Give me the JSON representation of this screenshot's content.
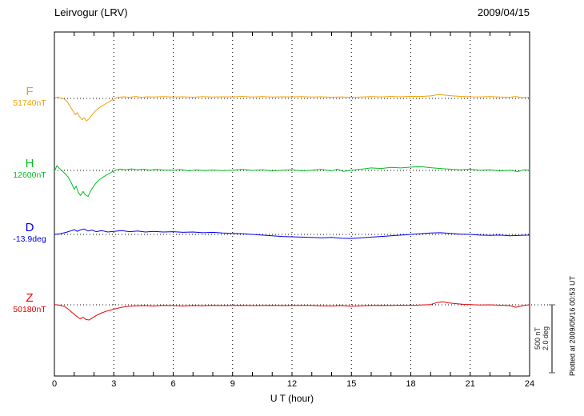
{
  "header": {
    "title": "Leirvogur (LRV)",
    "date": "2009/04/15"
  },
  "x_axis": {
    "label": "U T (hour)"
  },
  "scale_bar": {
    "nt_label": "500 nT",
    "deg_label": "2.0 deg"
  },
  "plotted_at": "Plotted at 2009/05/16 00:53 UT",
  "chart_data": {
    "type": "line",
    "title": "Leirvogur (LRV) magnetogram 2009/04/15",
    "xlabel": "U T (hour)",
    "x_range": [
      0,
      24
    ],
    "x_ticks": [
      0,
      3,
      6,
      9,
      12,
      15,
      18,
      21,
      24
    ],
    "grid": "dotted vertical at 3h intervals, dotted horizontal baseline per trace",
    "scale_bar": {
      "nT": 500,
      "deg": 2.0
    },
    "series": [
      {
        "name": "F",
        "unit": "nT",
        "baseline": 51740,
        "baseline_label": "51740nT",
        "color": "#f2a200",
        "points": [
          [
            0,
            6
          ],
          [
            0.2,
            10
          ],
          [
            0.35,
            2
          ],
          [
            0.5,
            -5
          ],
          [
            0.65,
            -25
          ],
          [
            0.8,
            -60
          ],
          [
            0.95,
            -95
          ],
          [
            1.05,
            -120
          ],
          [
            1.15,
            -105
          ],
          [
            1.25,
            -130
          ],
          [
            1.4,
            -158
          ],
          [
            1.5,
            -142
          ],
          [
            1.62,
            -165
          ],
          [
            1.75,
            -150
          ],
          [
            1.9,
            -122
          ],
          [
            2.05,
            -95
          ],
          [
            2.2,
            -75
          ],
          [
            2.4,
            -55
          ],
          [
            2.6,
            -38
          ],
          [
            2.8,
            -20
          ],
          [
            3.0,
            -5
          ],
          [
            3.2,
            8
          ],
          [
            3.5,
            12
          ],
          [
            3.8,
            8
          ],
          [
            4.1,
            14
          ],
          [
            4.4,
            8
          ],
          [
            4.7,
            12
          ],
          [
            5.0,
            10
          ],
          [
            5.5,
            13
          ],
          [
            6.0,
            10
          ],
          [
            6.5,
            12
          ],
          [
            7.0,
            9
          ],
          [
            7.5,
            13
          ],
          [
            8.0,
            10
          ],
          [
            8.5,
            12
          ],
          [
            9.0,
            11
          ],
          [
            9.5,
            14
          ],
          [
            10.0,
            10
          ],
          [
            10.5,
            13
          ],
          [
            11.0,
            10
          ],
          [
            11.5,
            12
          ],
          [
            12.0,
            11
          ],
          [
            12.5,
            13
          ],
          [
            13.0,
            10
          ],
          [
            13.5,
            12
          ],
          [
            14.0,
            9
          ],
          [
            14.5,
            11
          ],
          [
            15.0,
            7
          ],
          [
            15.5,
            10
          ],
          [
            16.0,
            13
          ],
          [
            16.5,
            11
          ],
          [
            17.0,
            14
          ],
          [
            17.5,
            12
          ],
          [
            18.0,
            15
          ],
          [
            18.5,
            14
          ],
          [
            19.0,
            18
          ],
          [
            19.4,
            28
          ],
          [
            19.7,
            24
          ],
          [
            20.0,
            20
          ],
          [
            20.5,
            15
          ],
          [
            21.0,
            12
          ],
          [
            21.5,
            11
          ],
          [
            22.0,
            13
          ],
          [
            22.5,
            10
          ],
          [
            23.0,
            9
          ],
          [
            23.3,
            14
          ],
          [
            23.6,
            6
          ],
          [
            24.0,
            9
          ]
        ]
      },
      {
        "name": "H",
        "unit": "nT",
        "baseline": 12600,
        "baseline_label": "12600nT",
        "color": "#00c020",
        "points": [
          [
            0,
            -8
          ],
          [
            0.12,
            35
          ],
          [
            0.25,
            15
          ],
          [
            0.4,
            -5
          ],
          [
            0.55,
            -25
          ],
          [
            0.7,
            -50
          ],
          [
            0.85,
            -90
          ],
          [
            1.0,
            -140
          ],
          [
            1.1,
            -115
          ],
          [
            1.2,
            -160
          ],
          [
            1.32,
            -185
          ],
          [
            1.45,
            -155
          ],
          [
            1.55,
            -178
          ],
          [
            1.7,
            -192
          ],
          [
            1.85,
            -145
          ],
          [
            2.0,
            -112
          ],
          [
            2.15,
            -85
          ],
          [
            2.3,
            -65
          ],
          [
            2.5,
            -45
          ],
          [
            2.7,
            -28
          ],
          [
            2.9,
            -12
          ],
          [
            3.1,
            2
          ],
          [
            3.3,
            10
          ],
          [
            3.6,
            4
          ],
          [
            3.9,
            11
          ],
          [
            4.2,
            5
          ],
          [
            4.5,
            9
          ],
          [
            4.8,
            2
          ],
          [
            5.1,
            7
          ],
          [
            5.5,
            3
          ],
          [
            6.0,
            1
          ],
          [
            6.4,
            6
          ],
          [
            6.8,
            -3
          ],
          [
            7.2,
            4
          ],
          [
            7.6,
            -2
          ],
          [
            8.0,
            3
          ],
          [
            8.5,
            -2
          ],
          [
            9.0,
            2
          ],
          [
            9.5,
            7
          ],
          [
            10.0,
            0
          ],
          [
            10.5,
            4
          ],
          [
            11.0,
            -4
          ],
          [
            11.5,
            1
          ],
          [
            12.0,
            5
          ],
          [
            12.5,
            -3
          ],
          [
            13.0,
            1
          ],
          [
            13.5,
            7
          ],
          [
            14.0,
            -4
          ],
          [
            14.3,
            9
          ],
          [
            14.6,
            -7
          ],
          [
            15.0,
            1
          ],
          [
            15.5,
            9
          ],
          [
            16.0,
            18
          ],
          [
            16.5,
            14
          ],
          [
            17.0,
            22
          ],
          [
            17.5,
            18
          ],
          [
            18.0,
            24
          ],
          [
            18.5,
            28
          ],
          [
            19.0,
            20
          ],
          [
            19.5,
            14
          ],
          [
            20.0,
            9
          ],
          [
            20.5,
            4
          ],
          [
            21.0,
            8
          ],
          [
            21.5,
            1
          ],
          [
            22.0,
            5
          ],
          [
            22.5,
            -4
          ],
          [
            23.0,
            1
          ],
          [
            23.4,
            -9
          ],
          [
            23.7,
            4
          ],
          [
            24.0,
            1
          ]
        ]
      },
      {
        "name": "D",
        "unit": "deg",
        "baseline": -13.9,
        "baseline_label": "-13.9deg",
        "color": "#0000f0",
        "points": [
          [
            0,
            0.0
          ],
          [
            0.3,
            0.02
          ],
          [
            0.6,
            0.06
          ],
          [
            0.8,
            0.1
          ],
          [
            1.0,
            0.14
          ],
          [
            1.15,
            0.09
          ],
          [
            1.3,
            0.13
          ],
          [
            1.5,
            0.16
          ],
          [
            1.7,
            0.1
          ],
          [
            1.9,
            0.13
          ],
          [
            2.1,
            0.08
          ],
          [
            2.4,
            0.11
          ],
          [
            2.7,
            0.07
          ],
          [
            3.0,
            0.09
          ],
          [
            3.4,
            0.11
          ],
          [
            3.8,
            0.08
          ],
          [
            4.2,
            0.1
          ],
          [
            4.6,
            0.07
          ],
          [
            5.0,
            0.09
          ],
          [
            5.5,
            0.07
          ],
          [
            6.0,
            0.08
          ],
          [
            6.5,
            0.06
          ],
          [
            7.0,
            0.07
          ],
          [
            7.5,
            0.05
          ],
          [
            8.0,
            0.06
          ],
          [
            8.5,
            0.04
          ],
          [
            9.0,
            0.03
          ],
          [
            9.5,
            0.02
          ],
          [
            10.0,
            0.0
          ],
          [
            10.5,
            -0.02
          ],
          [
            11.0,
            -0.04
          ],
          [
            11.5,
            -0.06
          ],
          [
            12.0,
            -0.07
          ],
          [
            12.5,
            -0.08
          ],
          [
            13.0,
            -0.09
          ],
          [
            13.5,
            -0.1
          ],
          [
            14.0,
            -0.09
          ],
          [
            14.5,
            -0.11
          ],
          [
            15.0,
            -0.12
          ],
          [
            15.5,
            -0.1
          ],
          [
            16.0,
            -0.08
          ],
          [
            16.5,
            -0.06
          ],
          [
            17.0,
            -0.04
          ],
          [
            17.5,
            -0.02
          ],
          [
            18.0,
            0.0
          ],
          [
            18.5,
            0.02
          ],
          [
            19.0,
            0.04
          ],
          [
            19.5,
            0.05
          ],
          [
            20.0,
            0.03
          ],
          [
            20.5,
            0.01
          ],
          [
            21.0,
            0.0
          ],
          [
            21.5,
            -0.02
          ],
          [
            22.0,
            -0.03
          ],
          [
            22.5,
            -0.02
          ],
          [
            23.0,
            -0.04
          ],
          [
            23.5,
            -0.03
          ],
          [
            24.0,
            -0.02
          ]
        ]
      },
      {
        "name": "Z",
        "unit": "nT",
        "baseline": 50180,
        "baseline_label": "50180nT",
        "color": "#e60000",
        "points": [
          [
            0,
            2
          ],
          [
            0.3,
            -3
          ],
          [
            0.5,
            -12
          ],
          [
            0.7,
            -32
          ],
          [
            0.9,
            -58
          ],
          [
            1.1,
            -82
          ],
          [
            1.3,
            -103
          ],
          [
            1.45,
            -92
          ],
          [
            1.6,
            -108
          ],
          [
            1.75,
            -112
          ],
          [
            1.9,
            -98
          ],
          [
            2.1,
            -80
          ],
          [
            2.35,
            -62
          ],
          [
            2.6,
            -48
          ],
          [
            2.85,
            -38
          ],
          [
            3.1,
            -28
          ],
          [
            3.4,
            -18
          ],
          [
            3.7,
            -12
          ],
          [
            4.0,
            -8
          ],
          [
            4.5,
            -6
          ],
          [
            5.0,
            -9
          ],
          [
            5.5,
            -4
          ],
          [
            6.0,
            -6
          ],
          [
            6.5,
            -9
          ],
          [
            7.0,
            -5
          ],
          [
            7.5,
            -7
          ],
          [
            8.0,
            -4
          ],
          [
            8.5,
            -6
          ],
          [
            9.0,
            -5
          ],
          [
            9.5,
            -4
          ],
          [
            10.0,
            -6
          ],
          [
            10.5,
            -5
          ],
          [
            11.0,
            -4
          ],
          [
            11.5,
            -6
          ],
          [
            12.0,
            -5
          ],
          [
            12.5,
            -4
          ],
          [
            13.0,
            -5
          ],
          [
            13.5,
            -7
          ],
          [
            14.0,
            -9
          ],
          [
            14.5,
            -5
          ],
          [
            15.0,
            -11
          ],
          [
            15.5,
            -7
          ],
          [
            16.0,
            -5
          ],
          [
            16.5,
            -4
          ],
          [
            17.0,
            -5
          ],
          [
            17.5,
            -3
          ],
          [
            18.0,
            -4
          ],
          [
            18.5,
            -2
          ],
          [
            19.0,
            2
          ],
          [
            19.3,
            16
          ],
          [
            19.6,
            22
          ],
          [
            19.9,
            14
          ],
          [
            20.3,
            8
          ],
          [
            20.7,
            3
          ],
          [
            21.0,
            1
          ],
          [
            21.5,
            -2
          ],
          [
            22.0,
            0
          ],
          [
            22.5,
            -3
          ],
          [
            23.0,
            -6
          ],
          [
            23.3,
            -18
          ],
          [
            23.6,
            -8
          ],
          [
            24.0,
            1
          ]
        ]
      }
    ]
  }
}
